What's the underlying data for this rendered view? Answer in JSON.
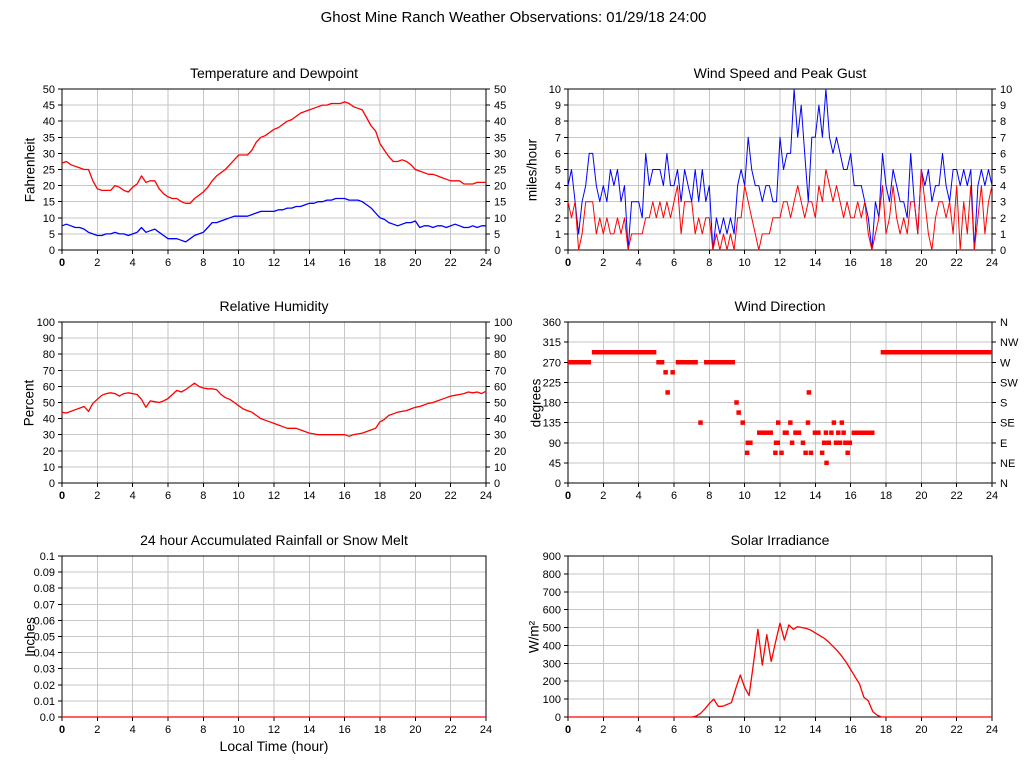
{
  "page_title": "Ghost Mine Ranch Weather Observations: 01/29/18 24:00",
  "colors": {
    "series_red": "#ff0000",
    "series_blue": "#0000ff",
    "grid": "#c6c6c6",
    "border": "#000000",
    "background": "#ffffff",
    "text": "#000000"
  },
  "x_axis": {
    "min": 0,
    "max": 24,
    "tick_step": 2,
    "tick_labels": [
      "0",
      "2",
      "4",
      "6",
      "8",
      "10",
      "12",
      "14",
      "16",
      "18",
      "20",
      "22",
      "24"
    ]
  },
  "chart_data": [
    {
      "id": "temperature-dewpoint",
      "type": "line",
      "title": "Temperature and Dewpoint",
      "ylabel": "Fahrenheit",
      "ylim": [
        0,
        50
      ],
      "ytick_labels": [
        "50",
        "45",
        "40",
        "35",
        "30",
        "25",
        "20",
        "15",
        "10",
        "5",
        "0"
      ],
      "mirror_right": true,
      "series": [
        {
          "name": "Temperature",
          "color": "#ff0000",
          "x_start": 0,
          "x_step": 0.25,
          "values": [
            27,
            27.5,
            26.5,
            26,
            25.5,
            25,
            25,
            21.5,
            19,
            18.5,
            18.5,
            18.5,
            20,
            19.5,
            18.5,
            18,
            19.5,
            20.5,
            23,
            21,
            21.5,
            21.5,
            19,
            17.5,
            16.5,
            16,
            16,
            15,
            14.5,
            14.5,
            16,
            17,
            18,
            19.5,
            21.5,
            23,
            24,
            25,
            26.5,
            28,
            29.5,
            29.5,
            29.5,
            31,
            33.5,
            35,
            35.5,
            36.5,
            37.5,
            38,
            39,
            40,
            40.5,
            41.5,
            42.5,
            43,
            43.5,
            44,
            44.5,
            45,
            45,
            45.5,
            45.5,
            45.5,
            46,
            45.5,
            44.5,
            44,
            43.5,
            41,
            38.5,
            37,
            33,
            31,
            29,
            27.5,
            27.5,
            28,
            27.5,
            26.5,
            25,
            24.5,
            24,
            23.5,
            23.5,
            23,
            22.5,
            22,
            21.5,
            21.5,
            21.5,
            20.5,
            20.5,
            20.5,
            21,
            21,
            21
          ]
        },
        {
          "name": "Dewpoint",
          "color": "#0000ff",
          "x_start": 0,
          "x_step": 0.25,
          "values": [
            7.5,
            8,
            7.5,
            7,
            7,
            6.5,
            5.5,
            5,
            4.5,
            4.5,
            5,
            5,
            5.5,
            5,
            5,
            4.5,
            5,
            5.5,
            7,
            5.5,
            6,
            6.5,
            5.5,
            4.5,
            3.5,
            3.5,
            3.5,
            3,
            2.5,
            3.5,
            4.5,
            5,
            5.5,
            7,
            8.5,
            8.5,
            9,
            9.5,
            10,
            10.5,
            10.5,
            10.5,
            10.5,
            11,
            11.5,
            12,
            12,
            12,
            12,
            12.5,
            12.5,
            13,
            13,
            13.5,
            13.5,
            14,
            14.5,
            14.5,
            15,
            15,
            15.5,
            15.5,
            16,
            16,
            16,
            15.5,
            15.5,
            15.5,
            15,
            14,
            13,
            11.5,
            10,
            9.5,
            8.5,
            8,
            7.5,
            8,
            8.5,
            8.5,
            9,
            7,
            7.5,
            7.5,
            7,
            7.5,
            7.5,
            7,
            7.5,
            8,
            7.5,
            7,
            7,
            7.5,
            7,
            7.5,
            7.5
          ]
        }
      ]
    },
    {
      "id": "wind-speed-gust",
      "type": "line",
      "title": "Wind Speed and Peak Gust",
      "ylabel": "miles/hour",
      "ylim": [
        0,
        10
      ],
      "ytick_labels": [
        "10",
        "9",
        "8",
        "7",
        "6",
        "5",
        "4",
        "3",
        "2",
        "1",
        "0"
      ],
      "mirror_right": true,
      "series": [
        {
          "name": "Peak Gust",
          "color": "#0000ff",
          "x_start": 0,
          "x_step": 0.2,
          "values": [
            4,
            5,
            3,
            1,
            3,
            4,
            6,
            6,
            4,
            3,
            4,
            3,
            5,
            4,
            5,
            3,
            4,
            0,
            3,
            3,
            3,
            2,
            6,
            4,
            5,
            5,
            5,
            4,
            6,
            4,
            4,
            5,
            3,
            5,
            4,
            3,
            5,
            3,
            5,
            3,
            4,
            0,
            2,
            1,
            2,
            1,
            2,
            1,
            4,
            5,
            4,
            7,
            5,
            4,
            4,
            3,
            4,
            4,
            3,
            3,
            7,
            5,
            6,
            6,
            10,
            7,
            9,
            6,
            3,
            7,
            7,
            9,
            7,
            10,
            7,
            6,
            7,
            6,
            5,
            5,
            6,
            4,
            4,
            4,
            3,
            2,
            0,
            3,
            2,
            6,
            4,
            3,
            5,
            4,
            3,
            3,
            2,
            6,
            3,
            1,
            5,
            4,
            5,
            3,
            4,
            4,
            6,
            4,
            3,
            5,
            5,
            4,
            5,
            4,
            5,
            0,
            4,
            5,
            4,
            5,
            4
          ]
        },
        {
          "name": "Wind Speed",
          "color": "#ff0000",
          "x_start": 0,
          "x_step": 0.2,
          "values": [
            3,
            2,
            3,
            0,
            1,
            3,
            3,
            3,
            1,
            2,
            1,
            2,
            1,
            1,
            2,
            1,
            2,
            0,
            1,
            1,
            1,
            1,
            2,
            2,
            3,
            2,
            3,
            2,
            3,
            2,
            3,
            4,
            1,
            3,
            3,
            3,
            1,
            2,
            1,
            2,
            2,
            0,
            1,
            0,
            1,
            0,
            1,
            0,
            2,
            2,
            4,
            3,
            2,
            1,
            0,
            1,
            1,
            1,
            2,
            2,
            2,
            3,
            3,
            2,
            3,
            4,
            3,
            2,
            3,
            3,
            2,
            4,
            3,
            5,
            4,
            3,
            4,
            3,
            2,
            3,
            2,
            2,
            3,
            2,
            3,
            1,
            0,
            1,
            2,
            4,
            1,
            2,
            4,
            2,
            1,
            2,
            1,
            3,
            3,
            1,
            5,
            3,
            1,
            0,
            2,
            3,
            3,
            2,
            3,
            1,
            4,
            0,
            3,
            1,
            4,
            0,
            2,
            4,
            1,
            3,
            4
          ]
        }
      ]
    },
    {
      "id": "relative-humidity",
      "type": "line",
      "title": "Relative Humidity",
      "ylabel": "Percent",
      "ylim": [
        0,
        100
      ],
      "ytick_labels": [
        "100",
        "90",
        "80",
        "70",
        "60",
        "50",
        "40",
        "30",
        "20",
        "10",
        "0"
      ],
      "mirror_right": true,
      "series": [
        {
          "name": "Relative Humidity",
          "color": "#ff0000",
          "x_start": 0,
          "x_step": 0.25,
          "values": [
            44,
            43.5,
            44.5,
            45.5,
            46.5,
            47.5,
            44.5,
            49.5,
            52,
            54.5,
            55.5,
            56,
            55.5,
            54,
            55.5,
            56,
            55.5,
            55,
            52,
            47,
            51,
            50.5,
            50,
            51,
            52.5,
            55,
            57.5,
            56.5,
            58,
            60,
            62,
            60,
            59,
            58.5,
            58.5,
            58,
            55,
            53,
            52,
            50,
            48,
            46,
            45,
            44,
            42,
            40,
            39,
            38,
            37,
            36,
            35,
            34,
            34,
            34,
            33,
            32,
            31,
            30.5,
            30,
            30,
            30,
            30,
            30,
            30,
            30,
            29,
            30,
            30.5,
            31,
            32,
            33,
            34,
            38,
            39.5,
            42,
            43,
            44,
            44.5,
            45,
            46,
            47,
            47.5,
            48.5,
            49.5,
            50,
            51,
            52,
            53,
            54,
            54.5,
            55,
            55.5,
            56.5,
            56,
            56.5,
            55.5,
            57
          ]
        }
      ]
    },
    {
      "id": "wind-direction",
      "type": "segments",
      "title": "Wind Direction",
      "ylabel": "degrees",
      "ylim": [
        0,
        360
      ],
      "ytick_labels": [
        "360",
        "315",
        "270",
        "225",
        "180",
        "135",
        "90",
        "45",
        "0"
      ],
      "ytick_labels_right": [
        "N",
        "NW",
        "W",
        "SW",
        "S",
        "SE",
        "E",
        "NE",
        "N"
      ],
      "mirror_right": false,
      "series": [
        {
          "name": "Wind Direction",
          "color": "#ff0000",
          "segments": [
            [
              0.0,
              1.3,
              270
            ],
            [
              1.35,
              5.0,
              292.5
            ],
            [
              5.05,
              5.2,
              270
            ],
            [
              5.25,
              5.4,
              270
            ],
            [
              5.45,
              5.6,
              247.5
            ],
            [
              5.6,
              5.68,
              202.5
            ],
            [
              5.8,
              6.05,
              247.5
            ],
            [
              6.1,
              7.35,
              270
            ],
            [
              7.4,
              7.6,
              135
            ],
            [
              7.7,
              9.45,
              270
            ],
            [
              9.5,
              9.58,
              180
            ],
            [
              9.62,
              9.7,
              157.5
            ],
            [
              9.78,
              10.0,
              135
            ],
            [
              10.05,
              10.45,
              90
            ],
            [
              10.1,
              10.18,
              67.5
            ],
            [
              10.7,
              11.6,
              112.5
            ],
            [
              11.65,
              12.0,
              90
            ],
            [
              11.7,
              11.78,
              67.5
            ],
            [
              11.85,
              11.95,
              135
            ],
            [
              12.05,
              12.12,
              67.5
            ],
            [
              12.15,
              12.5,
              112.5
            ],
            [
              12.55,
              12.62,
              135
            ],
            [
              12.65,
              12.72,
              90
            ],
            [
              12.75,
              13.2,
              112.5
            ],
            [
              13.25,
              13.35,
              90
            ],
            [
              13.4,
              13.5,
              67.5
            ],
            [
              13.55,
              13.62,
              135
            ],
            [
              13.6,
              13.67,
              202.5
            ],
            [
              13.7,
              13.8,
              67.5
            ],
            [
              13.85,
              14.3,
              112.5
            ],
            [
              14.35,
              14.42,
              67.5
            ],
            [
              14.45,
              14.55,
              90
            ],
            [
              14.55,
              14.65,
              112.5
            ],
            [
              14.6,
              14.67,
              45
            ],
            [
              14.7,
              14.82,
              90
            ],
            [
              14.85,
              14.97,
              112.5
            ],
            [
              15.0,
              15.1,
              135
            ],
            [
              15.12,
              15.22,
              90
            ],
            [
              15.25,
              15.35,
              112.5
            ],
            [
              15.35,
              15.45,
              90
            ],
            [
              15.45,
              15.55,
              135
            ],
            [
              15.55,
              15.65,
              112.5
            ],
            [
              15.65,
              15.75,
              90
            ],
            [
              15.78,
              15.88,
              67.5
            ],
            [
              15.9,
              16.0,
              90
            ],
            [
              16.05,
              17.35,
              112.5
            ],
            [
              17.7,
              24.0,
              292.5
            ]
          ]
        }
      ]
    },
    {
      "id": "rainfall",
      "type": "line",
      "title": "24 hour Accumulated Rainfall or Snow Melt",
      "ylabel": "Inches",
      "xlabel": "Local Time (hour)",
      "ylim": [
        0,
        0.1
      ],
      "ytick_labels": [
        "0.1",
        "0.09",
        "0.08",
        "0.07",
        "0.06",
        "0.05",
        "0.04",
        "0.03",
        "0.02",
        "0.01",
        "0.0"
      ],
      "mirror_right": false,
      "series": [
        {
          "name": "Rainfall",
          "color": "#ff0000",
          "x_start": 0,
          "x_step": 24,
          "values": [
            0,
            0
          ]
        }
      ]
    },
    {
      "id": "solar-irradiance",
      "type": "line",
      "title": "Solar Irradiance",
      "ylabel": "W/m²",
      "ylim": [
        0,
        900
      ],
      "ytick_labels": [
        "900",
        "800",
        "700",
        "600",
        "500",
        "400",
        "300",
        "200",
        "100",
        "0"
      ],
      "mirror_right": false,
      "series": [
        {
          "name": "Solar Irradiance",
          "color": "#ff0000",
          "x_start": 0,
          "x_step": 0.25,
          "values": [
            0,
            0,
            0,
            0,
            0,
            0,
            0,
            0,
            0,
            0,
            0,
            0,
            0,
            0,
            0,
            0,
            0,
            0,
            0,
            0,
            0,
            0,
            0,
            0,
            0,
            0,
            0,
            0,
            0,
            5,
            20,
            45,
            75,
            100,
            60,
            60,
            70,
            80,
            160,
            235,
            165,
            120,
            300,
            490,
            290,
            460,
            310,
            420,
            525,
            430,
            515,
            490,
            505,
            500,
            495,
            485,
            470,
            455,
            440,
            420,
            395,
            370,
            340,
            305,
            265,
            225,
            185,
            110,
            90,
            30,
            10,
            0,
            0,
            0,
            0,
            0,
            0,
            0,
            0,
            0,
            0,
            0,
            0,
            0,
            0,
            0,
            0,
            0,
            0,
            0,
            0,
            0,
            0,
            0,
            0,
            0,
            0
          ]
        }
      ]
    }
  ]
}
